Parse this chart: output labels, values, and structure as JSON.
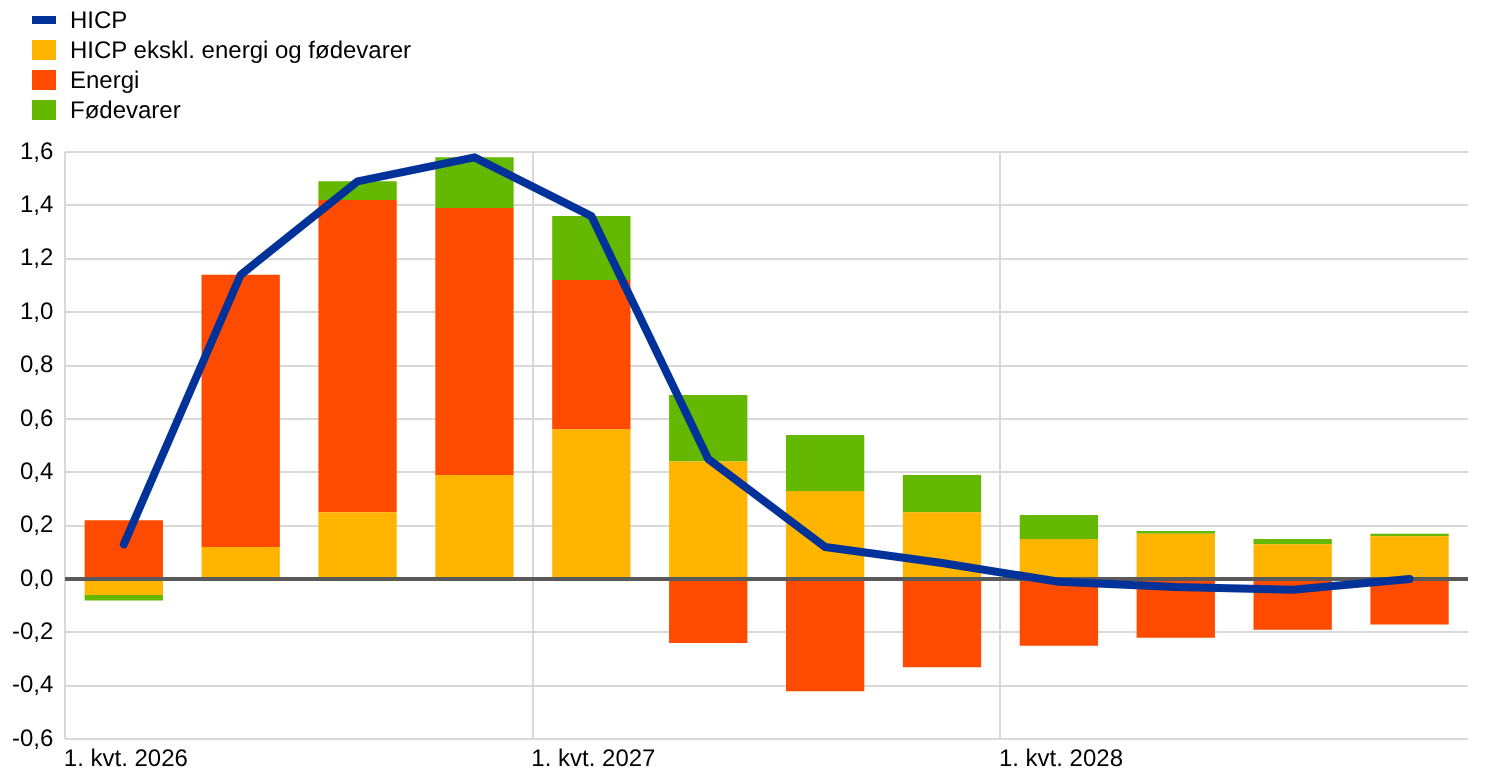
{
  "chart_data": {
    "type": "bar",
    "stacked": true,
    "categories": [
      "1. kvt. 2026",
      null,
      null,
      null,
      "1. kvt. 2027",
      null,
      null,
      null,
      "1. kvt. 2028",
      null,
      null,
      null
    ],
    "series": [
      {
        "name": "HICP",
        "type": "line",
        "color": "#003299",
        "values": [
          0.13,
          1.14,
          1.49,
          1.58,
          1.36,
          0.45,
          0.12,
          0.06,
          -0.01,
          -0.03,
          -0.04,
          0.0
        ]
      },
      {
        "name": "HICP ekskl. energi og fødevarer",
        "color": "#ffb400",
        "values": [
          -0.06,
          0.12,
          0.25,
          0.39,
          0.56,
          0.44,
          0.33,
          0.25,
          0.15,
          0.17,
          0.13,
          0.16
        ]
      },
      {
        "name": "Energi",
        "color": "#ff4b00",
        "values": [
          0.22,
          1.02,
          1.17,
          1.0,
          0.56,
          -0.24,
          -0.42,
          -0.33,
          -0.25,
          -0.22,
          -0.19,
          -0.17
        ]
      },
      {
        "name": "Fødevarer",
        "color": "#65b800",
        "values": [
          -0.02,
          0.0,
          0.07,
          0.19,
          0.24,
          0.25,
          0.21,
          0.14,
          0.09,
          0.01,
          0.02,
          0.01
        ]
      }
    ],
    "ylim": [
      -0.6,
      1.6
    ],
    "yticks": [
      {
        "value": -0.6,
        "label": "-0,6"
      },
      {
        "value": -0.4,
        "label": "-0,4"
      },
      {
        "value": -0.2,
        "label": "-0,2"
      },
      {
        "value": 0,
        "label": "0,0"
      },
      {
        "value": 0.2,
        "label": "0,2"
      },
      {
        "value": 0.4,
        "label": "0,4"
      },
      {
        "value": 0.6,
        "label": "0,6"
      },
      {
        "value": 0.8,
        "label": "0,8"
      },
      {
        "value": 1.0,
        "label": "1,0"
      },
      {
        "value": 1.2,
        "label": "1,2"
      },
      {
        "value": 1.4,
        "label": "1,4"
      },
      {
        "value": 1.6,
        "label": "1,6"
      }
    ],
    "grid": true,
    "legend": "top left",
    "marker": "none"
  }
}
